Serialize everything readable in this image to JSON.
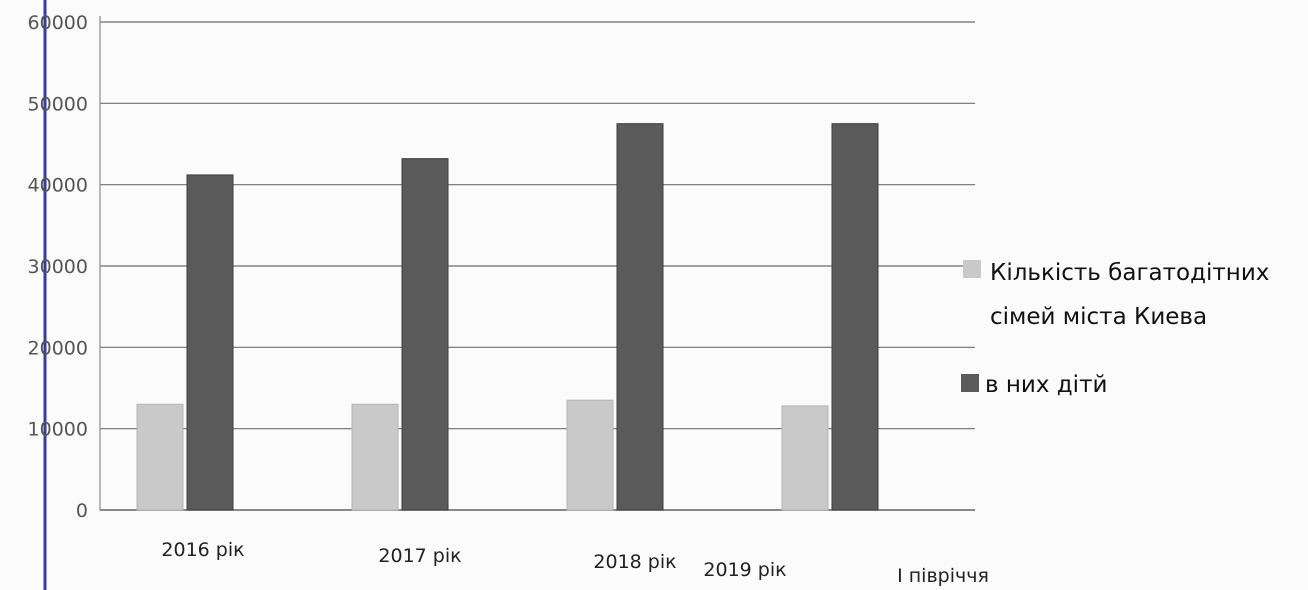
{
  "chart_data": {
    "type": "bar",
    "title": "",
    "xlabel": "",
    "ylabel": "",
    "categories": [
      "2016 рік",
      "2017 рік",
      "2018 рік",
      "2019 рік",
      "І півріччя"
    ],
    "series": [
      {
        "name": "Кількість багатодітних сімей міста Киева",
        "color": "#c9c9c9",
        "values": [
          13000,
          13000,
          13500,
          12800,
          null
        ]
      },
      {
        "name": "в них дітй",
        "color": "#5a5a5a",
        "values": [
          41200,
          43200,
          47500,
          47500,
          null
        ]
      }
    ],
    "ylim": [
      0,
      60000
    ],
    "yticks": [
      0,
      10000,
      20000,
      30000,
      40000,
      50000,
      60000
    ],
    "ytick_labels": [
      "0",
      "10000",
      "20000",
      "30000",
      "40000",
      "50000",
      "60000"
    ],
    "grid": true,
    "legend_position": "right"
  }
}
